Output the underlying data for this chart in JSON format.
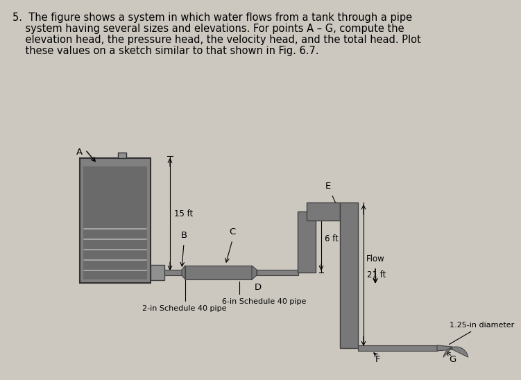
{
  "bg_color": "#ccc8c0",
  "pipe_color": "#404040",
  "pipe_fill": "#787878",
  "pipe_fill_dark": "#686868",
  "tank_outer_fill": "#888888",
  "tank_inner_fill": "#707070",
  "water_line_color": "#909090",
  "text_color": "#000000",
  "label_fontsize": 8.5,
  "title_fontsize": 10.5,
  "title_line1": "5.  The figure shows a system in which water flows from a tank through a pipe",
  "title_line2": "    system having several sizes and elevations. For points A – G, compute the",
  "title_line3": "    elevation head, the pressure head, the velocity head, and the total head. Plot",
  "title_line4": "    these values on a sketch similar to that shown in Fig. 6.7.",
  "dim_15ft": "15 ft",
  "dim_6ft": "6 ft",
  "dim_21ft": "21 ft",
  "label_A": "A",
  "label_B": "B",
  "label_C": "C",
  "label_D": "D",
  "label_E": "E",
  "label_F": "F",
  "label_G": "G",
  "pipe_2in": "2-in Schedule 40 pipe",
  "pipe_6in": "6-in Schedule 40 pipe",
  "pipe_125in": "1.25-in diameter",
  "flow_label": "Flow"
}
